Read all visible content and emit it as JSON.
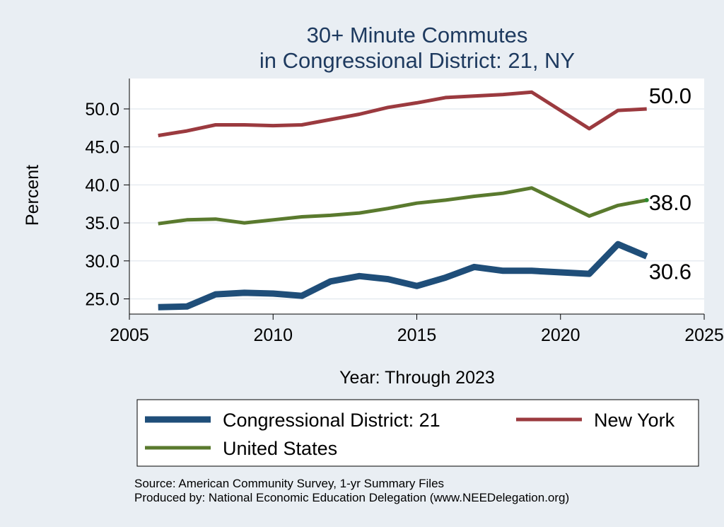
{
  "chart_data": {
    "type": "line",
    "title": [
      "30+ Minute Commutes",
      "in Congressional District:  21, NY"
    ],
    "xlabel": "Year: Through 2023",
    "ylabel": "Percent",
    "xlim": [
      2005,
      2025
    ],
    "ylim": [
      23,
      54
    ],
    "xticks": [
      2005,
      2010,
      2015,
      2020,
      2025
    ],
    "yticks": [
      25.0,
      30.0,
      35.0,
      40.0,
      45.0,
      50.0
    ],
    "grid": true,
    "x": [
      2006,
      2007,
      2008,
      2009,
      2010,
      2011,
      2012,
      2013,
      2014,
      2015,
      2016,
      2017,
      2018,
      2019,
      2021,
      2022,
      2023
    ],
    "series": [
      {
        "name": "Congressional District:  21",
        "color": "#1f4e79",
        "values": [
          23.9,
          24.0,
          25.6,
          25.8,
          25.7,
          25.4,
          27.3,
          28.0,
          27.6,
          26.7,
          27.8,
          29.2,
          28.7,
          28.7,
          28.3,
          32.2,
          30.6
        ],
        "end_label": "30.6"
      },
      {
        "name": "New York",
        "color": "#9b3a3f",
        "values": [
          46.5,
          47.1,
          47.9,
          47.9,
          47.8,
          47.9,
          48.6,
          49.3,
          50.2,
          50.8,
          51.5,
          51.7,
          51.9,
          52.2,
          47.4,
          49.8,
          50.0
        ],
        "end_label": "50.0"
      },
      {
        "name": "United States",
        "color": "#5a7a2e",
        "values": [
          34.9,
          35.4,
          35.5,
          35.0,
          35.4,
          35.8,
          36.0,
          36.3,
          36.9,
          37.6,
          38.0,
          38.5,
          38.9,
          39.6,
          35.9,
          37.3,
          38.0
        ],
        "end_label": "38.0"
      }
    ],
    "legend": {
      "position": "bottom",
      "entries": [
        "Congressional District:  21",
        "New York",
        "United States"
      ]
    },
    "source": [
      "Source: American Community Survey, 1-yr Summary Files",
      "Produced by: National Economic Education Delegation (www.NEEDelegation.org)"
    ]
  }
}
